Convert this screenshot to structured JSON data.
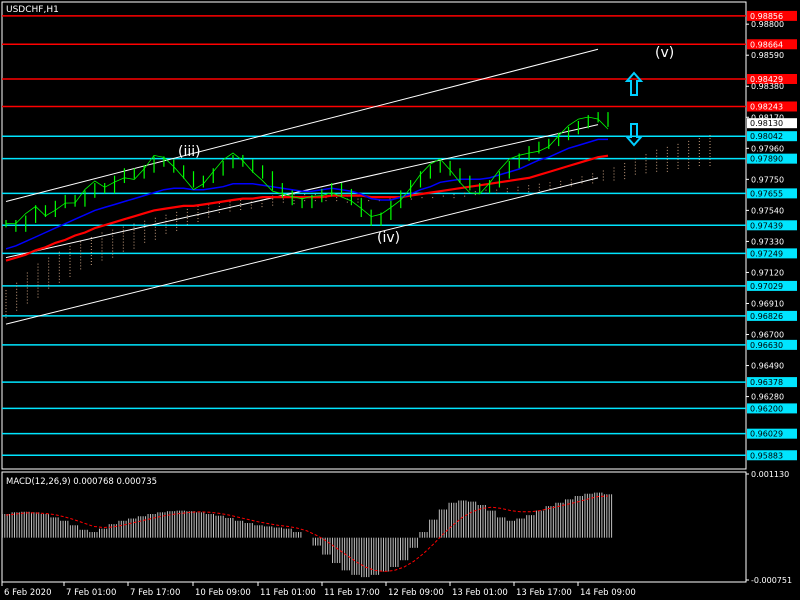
{
  "title": "USDCHF,H1",
  "colors": {
    "background": "#000000",
    "axis": "#ffffff",
    "resistance": "#ff0000",
    "support": "#00e5ff",
    "price": "#00ff00",
    "ma_fast": "#0000ff",
    "ma_slow": "#ff0000",
    "channel": "#ffffff",
    "cloud": "#c8a080",
    "macd": "#c0c0c0",
    "signal": "#ff0000",
    "arrow": "#00cfff"
  },
  "chart_data": [
    {
      "type": "line",
      "name": "price-panel",
      "symbol": "USDCHF,H1",
      "ylim": [
        0.9579,
        0.9895
      ],
      "y_ticks": [
        "0.98800",
        "0.98590",
        "0.98380",
        "0.98170",
        "0.97960",
        "0.97750",
        "0.97540",
        "0.97330",
        "0.97120",
        "0.96910",
        "0.96700",
        "0.96490",
        "0.96280"
      ],
      "x_ticks": [
        "6 Feb 2020",
        "7 Feb 01:00",
        "7 Feb 17:00",
        "10 Feb 09:00",
        "11 Feb 01:00",
        "11 Feb 17:00",
        "12 Feb 09:00",
        "13 Feb 01:00",
        "13 Feb 17:00",
        "14 Feb 09:00"
      ],
      "resistance_levels": [
        "0.98856",
        "0.98664",
        "0.98429",
        "0.98243"
      ],
      "support_levels": [
        "0.98042",
        "0.97890",
        "0.97655",
        "0.97439",
        "0.97249",
        "0.97029",
        "0.96826",
        "0.96630",
        "0.96378",
        "0.96200",
        "0.96029",
        "0.95883"
      ],
      "current_price": "0.98130",
      "wave_labels": [
        "(iii)",
        "(iv)",
        "(v)"
      ],
      "series": [
        {
          "values": [
            0.9745,
            0.9742,
            0.9748,
            0.9755,
            0.9752,
            0.9758,
            0.9762,
            0.9759,
            0.9765,
            0.977,
            0.9768,
            0.9775,
            0.978,
            0.9778,
            0.9782,
            0.9788,
            0.9786,
            0.9782,
            0.9778,
            0.9772,
            0.9775,
            0.978,
            0.9785,
            0.9789,
            0.9786,
            0.9782,
            0.9778,
            0.977,
            0.9765,
            0.976,
            0.9758,
            0.9762,
            0.9766,
            0.977,
            0.9766,
            0.976,
            0.9752,
            0.9746,
            0.975,
            0.9758,
            0.9765,
            0.9772,
            0.9778,
            0.9782,
            0.9785,
            0.978,
            0.9775,
            0.977,
            0.9768,
            0.9772,
            0.9778,
            0.9785,
            0.979,
            0.9795,
            0.9798,
            0.98,
            0.9804,
            0.9808,
            0.9812,
            0.9816,
            0.9818,
            0.9813
          ]
        }
      ],
      "ma_fast": [
        0.9728,
        0.973,
        0.9733,
        0.9736,
        0.9739,
        0.9742,
        0.9745,
        0.9748,
        0.9751,
        0.9754,
        0.9756,
        0.9758,
        0.976,
        0.9762,
        0.9764,
        0.9766,
        0.9768,
        0.9769,
        0.9769,
        0.9768,
        0.9768,
        0.9769,
        0.977,
        0.9772,
        0.9772,
        0.9772,
        0.9771,
        0.977,
        0.9769,
        0.9768,
        0.9767,
        0.9767,
        0.9768,
        0.9769,
        0.9768,
        0.9767,
        0.9765,
        0.9762,
        0.9761,
        0.9761,
        0.9763,
        0.9765,
        0.9768,
        0.977,
        0.9773,
        0.9774,
        0.9775,
        0.9775,
        0.9775,
        0.9776,
        0.9778,
        0.978,
        0.9782,
        0.9785,
        0.9788,
        0.979,
        0.9793,
        0.9796,
        0.9798,
        0.98,
        0.9802,
        0.9802
      ],
      "ma_slow": [
        0.972,
        0.9722,
        0.9724,
        0.9727,
        0.9729,
        0.9732,
        0.9734,
        0.9737,
        0.9739,
        0.9742,
        0.9744,
        0.9746,
        0.9748,
        0.975,
        0.9752,
        0.9754,
        0.9755,
        0.9756,
        0.9757,
        0.9757,
        0.9758,
        0.9759,
        0.976,
        0.9761,
        0.9762,
        0.9762,
        0.9763,
        0.9763,
        0.9763,
        0.9763,
        0.9763,
        0.9763,
        0.9763,
        0.9764,
        0.9764,
        0.9764,
        0.9764,
        0.9763,
        0.9763,
        0.9763,
        0.9763,
        0.9764,
        0.9765,
        0.9766,
        0.9767,
        0.9768,
        0.9769,
        0.977,
        0.9771,
        0.9772,
        0.9773,
        0.9774,
        0.9775,
        0.9776,
        0.9778,
        0.978,
        0.9782,
        0.9784,
        0.9786,
        0.9788,
        0.979,
        0.9791
      ],
      "cloud_top": [
        0.97,
        0.9705,
        0.9712,
        0.9718,
        0.9722,
        0.9726,
        0.973,
        0.9733,
        0.9736,
        0.9739,
        0.9741,
        0.9743,
        0.9745,
        0.9747,
        0.9749,
        0.9751,
        0.9753,
        0.9755,
        0.9757,
        0.9758,
        0.9759,
        0.976,
        0.9761,
        0.9762,
        0.9763,
        0.9764,
        0.9764,
        0.9765,
        0.9765,
        0.9765,
        0.9765,
        0.9765,
        0.9764,
        0.9764,
        0.9763,
        0.9763,
        0.9762,
        0.9762,
        0.9762,
        0.9763,
        0.9763,
        0.9764,
        0.9765,
        0.9766,
        0.9767,
        0.9768,
        0.9768,
        0.9769,
        0.977,
        0.9771,
        0.9772,
        0.9773,
        0.9774,
        0.9775,
        0.9777,
        0.9779,
        0.9781,
        0.9783,
        0.9786,
        0.9789,
        0.9792,
        0.9795,
        0.9797,
        0.9799,
        0.9801,
        0.9803,
        0.9805
      ],
      "cloud_bottom": [
        0.968,
        0.9685,
        0.969,
        0.9695,
        0.97,
        0.9705,
        0.9709,
        0.9713,
        0.9716,
        0.9719,
        0.9722,
        0.9725,
        0.9728,
        0.9731,
        0.9734,
        0.9737,
        0.974,
        0.9743,
        0.9746,
        0.9749,
        0.9751,
        0.9753,
        0.9754,
        0.9755,
        0.9756,
        0.9757,
        0.9758,
        0.9758,
        0.9759,
        0.9759,
        0.9759,
        0.9759,
        0.9759,
        0.9759,
        0.9759,
        0.9759,
        0.976,
        0.976,
        0.976,
        0.9761,
        0.9761,
        0.9762,
        0.9762,
        0.9763,
        0.9763,
        0.9764,
        0.9764,
        0.9765,
        0.9765,
        0.9766,
        0.9767,
        0.9768,
        0.9769,
        0.977,
        0.9771,
        0.9772,
        0.9773,
        0.9774,
        0.9775,
        0.9777,
        0.9778,
        0.9779,
        0.978,
        0.9781,
        0.9782,
        0.9783,
        0.9784
      ],
      "channel_upper": [
        [
          0,
          0.976
        ],
        [
          61,
          0.9863
        ]
      ],
      "channel_middle": [
        [
          0,
          0.9722
        ],
        [
          61,
          0.9812
        ]
      ],
      "channel_lower": [
        [
          0,
          0.9677
        ],
        [
          61,
          0.9776
        ]
      ]
    },
    {
      "type": "bar",
      "name": "macd-panel",
      "label": "MACD(12,26,9) 0.000768 0.000735",
      "ylim": [
        -0.000751,
        0.00113
      ],
      "y_ticks": [
        "0.001130",
        "-0.000751"
      ],
      "histogram": [
        0.00042,
        0.00045,
        0.00046,
        0.00045,
        0.00042,
        0.00036,
        0.0003,
        0.00022,
        0.00014,
        0.0001,
        0.00016,
        0.00024,
        0.0003,
        0.00034,
        0.00038,
        0.00042,
        0.00045,
        0.00047,
        0.00048,
        0.00047,
        0.00045,
        0.00042,
        0.00039,
        0.00035,
        0.0003,
        0.00026,
        0.00022,
        0.0002,
        0.00018,
        0.00016,
        0.0001,
        0.0,
        -0.00014,
        -0.0003,
        -0.00045,
        -0.00058,
        -0.00066,
        -0.0007,
        -0.00066,
        -0.0006,
        -0.00052,
        -0.0004,
        -0.00018,
        0.0001,
        0.00032,
        0.0005,
        0.00062,
        0.00066,
        0.00064,
        0.00058,
        0.00048,
        0.00036,
        0.0003,
        0.00034,
        0.0004,
        0.00048,
        0.00056,
        0.00062,
        0.00068,
        0.00074,
        0.00078,
        0.0008,
        0.00077
      ],
      "signal": [
        0.0004,
        0.00042,
        0.00044,
        0.00044,
        0.00043,
        0.00041,
        0.00037,
        0.00032,
        0.00026,
        0.0002,
        0.00018,
        0.00019,
        0.00022,
        0.00026,
        0.0003,
        0.00034,
        0.00038,
        0.00041,
        0.00043,
        0.00045,
        0.00046,
        0.00045,
        0.00043,
        0.0004,
        0.00036,
        0.00032,
        0.00028,
        0.00025,
        0.00022,
        0.0002,
        0.00017,
        0.00012,
        4e-05,
        -6e-05,
        -0.00018,
        -0.0003,
        -0.00042,
        -0.00052,
        -0.00058,
        -0.0006,
        -0.00058,
        -0.00052,
        -0.00042,
        -0.00028,
        -0.00012,
        6e-05,
        0.00022,
        0.00036,
        0.00046,
        0.00052,
        0.00054,
        0.00052,
        0.00048,
        0.00046,
        0.00046,
        0.00048,
        0.00052,
        0.00056,
        0.0006,
        0.00064,
        0.00069,
        0.00073,
        0.00074
      ]
    }
  ]
}
